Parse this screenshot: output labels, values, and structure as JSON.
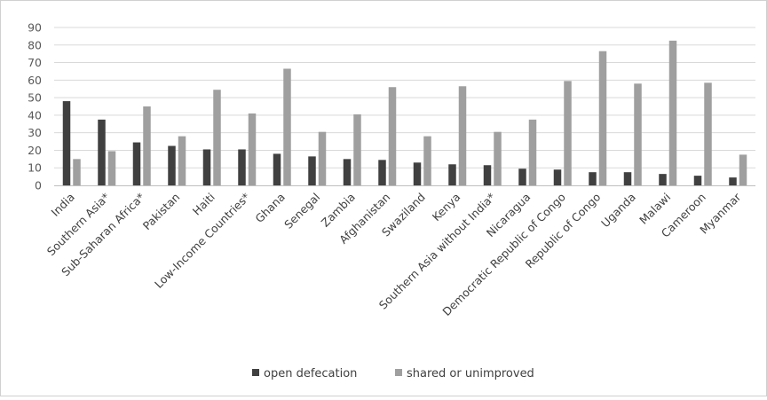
{
  "chart_data": {
    "type": "bar",
    "title": "",
    "xlabel": "",
    "ylabel": "",
    "ylim": [
      0,
      90
    ],
    "yticks": [
      0,
      10,
      20,
      30,
      40,
      50,
      60,
      70,
      80,
      90
    ],
    "grid": true,
    "legend_position": "bottom",
    "categories": [
      "India",
      "Southern Asia*",
      "Sub-Saharan Africa*",
      "Pakistan",
      "Haiti",
      "Low-Income Countries*",
      "Ghana",
      "Senegal",
      "Zambia",
      "Afghanistan",
      "Swaziland",
      "Kenya",
      "Southern Asia without India*",
      "Nicaragua",
      "Democratic Republic of Congo",
      "Republic of Congo",
      "Uganda",
      "Malawi",
      "Cameroon",
      "Myanmar"
    ],
    "series": [
      {
        "name": "open defecation",
        "color": "#404040",
        "values": [
          48,
          37.5,
          24.5,
          22.5,
          20.5,
          20.5,
          18,
          16.5,
          15,
          14.5,
          13,
          12,
          11.5,
          9.5,
          9,
          7.5,
          7.5,
          6.5,
          5.5,
          4.5
        ]
      },
      {
        "name": "shared or unimproved",
        "color": "#9f9f9f",
        "values": [
          15,
          19.5,
          45,
          28,
          54.5,
          41,
          66.5,
          30.5,
          40.5,
          56,
          28,
          56.5,
          30.5,
          37.5,
          59.5,
          76.5,
          58,
          82.5,
          58.5,
          17.5
        ]
      }
    ]
  }
}
